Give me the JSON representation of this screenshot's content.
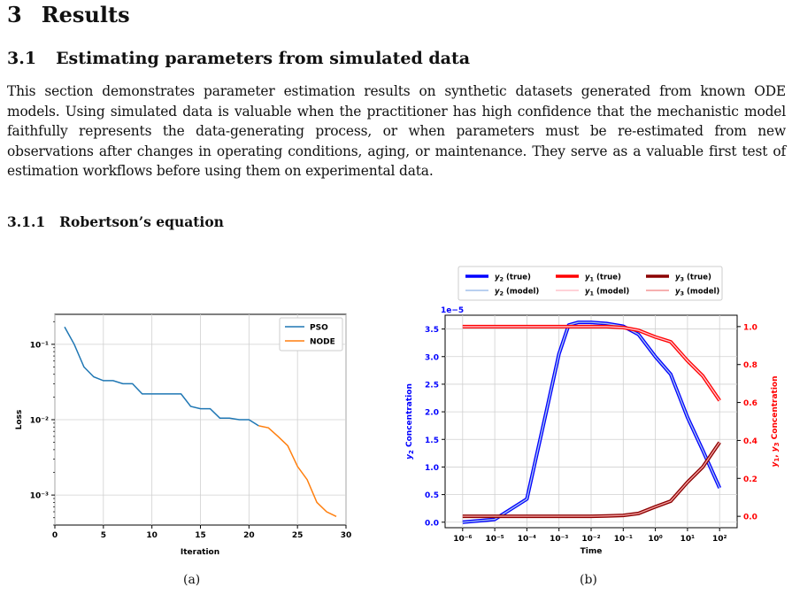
{
  "section": {
    "number": "3",
    "title": "Results"
  },
  "subsection": {
    "number": "3.1",
    "title": "Estimating parameters from simulated data"
  },
  "paragraph": "This section demonstrates parameter estimation results on synthetic datasets generated from known ODE models. Using simulated data is valuable when the practitioner has high confidence that the mechanistic model faithfully represents the data-generating process, or when parameters must be re-estimated from new observations after changes in operating conditions, aging, or maintenance. They serve as a valuable first test of estimation workflows before using them on experimental data.",
  "subsubsection": {
    "number": "3.1.1",
    "title": "Robertson’s equation"
  },
  "captions": {
    "a": "(a)",
    "b": "(b)"
  },
  "colors": {
    "pso": "#1f77b4",
    "node": "#ff7f0e",
    "y2": "#0000ff",
    "y1": "#ff0000",
    "y3": "#8b0000",
    "right_axis": "#ff0000"
  },
  "chart_data": [
    {
      "type": "line",
      "xlabel": "Iteration",
      "ylabel": "Loss",
      "yscale": "log",
      "xlim": [
        0,
        30
      ],
      "ylim": [
        0.0004,
        0.25
      ],
      "xticks": [
        "0",
        "5",
        "10",
        "15",
        "20",
        "25",
        "30"
      ],
      "yticks": [
        "10⁻¹",
        "10⁻²",
        "10⁻³"
      ],
      "grid": true,
      "legend_position": "top-right",
      "series": [
        {
          "name": "PSO",
          "color": "#1f77b4",
          "x": [
            1,
            2,
            3,
            4,
            5,
            6,
            7,
            8,
            9,
            10,
            11,
            12,
            13,
            14,
            15,
            16,
            17,
            18,
            19,
            20,
            21
          ],
          "y": [
            0.17,
            0.1,
            0.05,
            0.037,
            0.033,
            0.033,
            0.03,
            0.03,
            0.022,
            0.022,
            0.022,
            0.022,
            0.022,
            0.015,
            0.014,
            0.014,
            0.0105,
            0.0105,
            0.01,
            0.01,
            0.0083
          ]
        },
        {
          "name": "NODE",
          "color": "#ff7f0e",
          "x": [
            21,
            22,
            23,
            24,
            25,
            26,
            27,
            28,
            29
          ],
          "y": [
            0.0083,
            0.0078,
            0.006,
            0.0045,
            0.0024,
            0.0016,
            0.0008,
            0.0006,
            0.00052
          ]
        }
      ]
    },
    {
      "type": "line",
      "xlabel": "Time",
      "ylabel": "y₂ Concentration",
      "ylabel_right": "y₁, y₃ Concentration",
      "xscale": "log",
      "xlim": [
        1e-06,
        100
      ],
      "ylim_left": [
        -1e-06,
        3.75e-05
      ],
      "ylim_right": [
        -0.06,
        1.06
      ],
      "y_offset_label": "1e−5",
      "xticks": [
        "10⁻⁶",
        "10⁻⁵",
        "10⁻⁴",
        "10⁻³",
        "10⁻²",
        "10⁻¹",
        "10⁰",
        "10¹",
        "10²"
      ],
      "yticks_left": [
        "0.0",
        "0.5",
        "1.0",
        "1.5",
        "2.0",
        "2.5",
        "3.0",
        "3.5"
      ],
      "yticks_right": [
        "0.0",
        "0.2",
        "0.4",
        "0.6",
        "0.8",
        "1.0"
      ],
      "grid": true,
      "legend_position": "top",
      "legend": [
        {
          "sub": "2",
          "tail": " (true)",
          "color": "#0000ff",
          "style": "thick"
        },
        {
          "sub": "1",
          "tail": " (true)",
          "color": "#ff0000",
          "style": "thick"
        },
        {
          "sub": "3",
          "tail": " (true)",
          "color": "#8b0000",
          "style": "thick"
        },
        {
          "sub": "2",
          "tail": " (model)",
          "color": "#8fb4e8",
          "style": "thin"
        },
        {
          "sub": "1",
          "tail": " (model)",
          "color": "#ffb6c1",
          "style": "thin"
        },
        {
          "sub": "3",
          "tail": " (model)",
          "color": "#f08080",
          "style": "thin"
        }
      ],
      "x": [
        1e-06,
        1e-05,
        0.0001,
        0.0004,
        0.001,
        0.002,
        0.004,
        0.01,
        0.03,
        0.1,
        0.3,
        1,
        3,
        10,
        30,
        100
      ],
      "series": [
        {
          "name": "y2",
          "axis": "left",
          "color": "#0000ff",
          "y": [
            0.0,
            5e-07,
            4.2e-06,
            2e-05,
            3.05e-05,
            3.57e-05,
            3.62e-05,
            3.62e-05,
            3.6e-05,
            3.55e-05,
            3.4e-05,
            3e-05,
            2.68e-05,
            1.9e-05,
            1.3e-05,
            6.2e-06
          ]
        },
        {
          "name": "y1",
          "axis": "right",
          "color": "#ff0000",
          "y": [
            1.0,
            1.0,
            1.0,
            1.0,
            1.0,
            1.0,
            1.0,
            1.0,
            1.0,
            0.995,
            0.98,
            0.945,
            0.92,
            0.82,
            0.74,
            0.61
          ]
        },
        {
          "name": "y3",
          "axis": "right",
          "color": "#8b0000",
          "y": [
            0.0,
            0.0,
            0.0,
            0.0,
            0.0,
            0.0,
            0.0,
            0.0,
            0.002,
            0.005,
            0.015,
            0.05,
            0.08,
            0.18,
            0.26,
            0.39
          ]
        }
      ]
    }
  ]
}
